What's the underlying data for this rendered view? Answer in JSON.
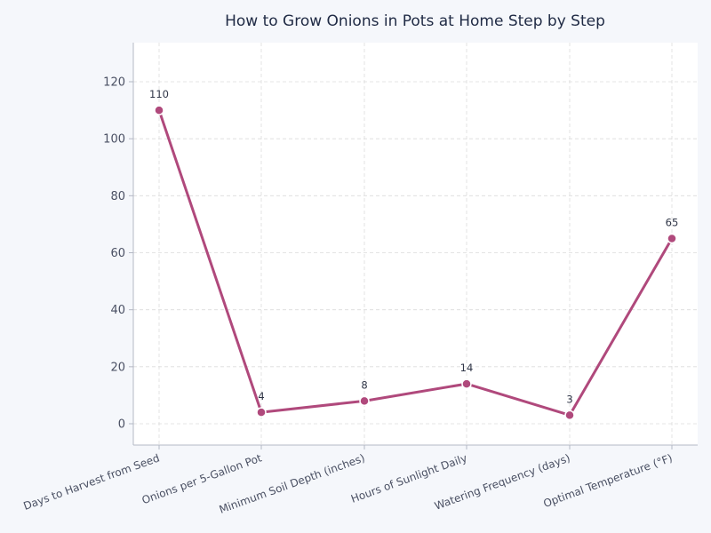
{
  "chart_data": {
    "type": "line",
    "title": "How to Grow Onions in Pots at Home Step by Step",
    "xlabel": "",
    "ylabel": "",
    "categories": [
      "Days to Harvest from Seed",
      "Onions per 5-Gallon Pot",
      "Minimum Soil Depth (inches)",
      "Hours of Sunlight Daily",
      "Watering Frequency (days)",
      "Optimal Temperature (°F)"
    ],
    "series": [
      {
        "name": "Value",
        "values": [
          110,
          4,
          8,
          14,
          3,
          65
        ],
        "color": "#b0497c"
      }
    ],
    "data_labels": [
      "110",
      "4",
      "8",
      "14",
      "3",
      "65"
    ],
    "yticks": [
      0,
      20,
      40,
      60,
      80,
      100,
      120
    ],
    "ytick_labels": [
      "0",
      "20",
      "40",
      "60",
      "80",
      "100",
      "120"
    ],
    "ylim": [
      -7.5,
      133.5
    ],
    "grid": true,
    "legend": null
  },
  "colors": {
    "background": "#f5f7fb",
    "plot_background": "#ffffff",
    "line": "#b0497c",
    "grid": "#dcdcdc",
    "axis": "#b4b8c4",
    "title": "#1f2a44",
    "tick_text": "#4a5063"
  }
}
